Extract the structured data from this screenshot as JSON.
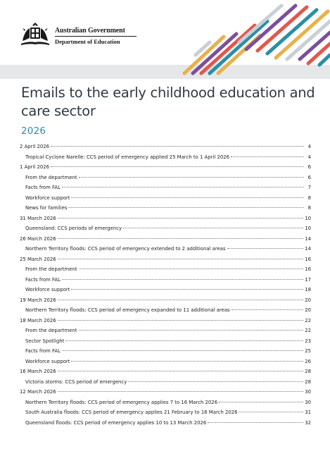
{
  "header": {
    "government": "Australian Government",
    "department": "Department of Education",
    "crest_icon": "coat-of-arms-icon",
    "stripe_colors": [
      "#2a8fa6",
      "#e8b14a",
      "#7b4f9d",
      "#e2574c",
      "#c8cfd6"
    ]
  },
  "document": {
    "title": "Emails to the early childhood education and care sector",
    "year": "2026"
  },
  "toc": [
    {
      "text": "2 April 2026",
      "page": "4",
      "level": 1
    },
    {
      "text": "Tropical Cyclone Narelle: CCS period of emergency applied 25 March to 1 April 2026",
      "page": "4",
      "level": 2
    },
    {
      "text": "1 April 2026",
      "page": "6",
      "level": 1
    },
    {
      "text": "From the department",
      "page": "6",
      "level": 2
    },
    {
      "text": "Facts from FAL",
      "page": "7",
      "level": 2
    },
    {
      "text": "Workforce support",
      "page": "8",
      "level": 2
    },
    {
      "text": "News for families",
      "page": "8",
      "level": 2
    },
    {
      "text": "31 March 2026",
      "page": "10",
      "level": 1
    },
    {
      "text": "Queensland: CCS periods of emergency",
      "page": "10",
      "level": 2
    },
    {
      "text": "26 March 2026",
      "page": "14",
      "level": 1
    },
    {
      "text": "Northern Territory floods: CCS period of emergency extended to 2 additional areas",
      "page": "14",
      "level": 2
    },
    {
      "text": "25 March 2026",
      "page": "16",
      "level": 1
    },
    {
      "text": "From the department",
      "page": "16",
      "level": 2
    },
    {
      "text": "Facts from FAL",
      "page": "17",
      "level": 2
    },
    {
      "text": "Workforce support",
      "page": "18",
      "level": 2
    },
    {
      "text": "19 March 2026",
      "page": "20",
      "level": 1
    },
    {
      "text": "Northern Territory floods: CCS period of emergency expanded to 11 additional areas",
      "page": "20",
      "level": 2
    },
    {
      "text": "18 March 2026",
      "page": "22",
      "level": 1
    },
    {
      "text": "From the department",
      "page": "22",
      "level": 2
    },
    {
      "text": "Sector Spotlight",
      "page": "23",
      "level": 2
    },
    {
      "text": "Facts from FAL",
      "page": "25",
      "level": 2
    },
    {
      "text": "Workforce support",
      "page": "26",
      "level": 2
    },
    {
      "text": "16 March 2026",
      "page": "28",
      "level": 1
    },
    {
      "text": "Victoria storms: CCS period of emergency",
      "page": "28",
      "level": 2
    },
    {
      "text": "12 March 2026",
      "page": "30",
      "level": 1
    },
    {
      "text": "Northern Territory floods: CCS period of emergency applies 7 to 16 March 2026",
      "page": "30",
      "level": 2
    },
    {
      "text": "South Australia floods: CCS period of emergency applies 21 February to 16 March 2026",
      "page": "31",
      "level": 2
    },
    {
      "text": "Queensland floods: CCS period of emergency applies 10 to 13 March 2026",
      "page": "32",
      "level": 2
    }
  ]
}
